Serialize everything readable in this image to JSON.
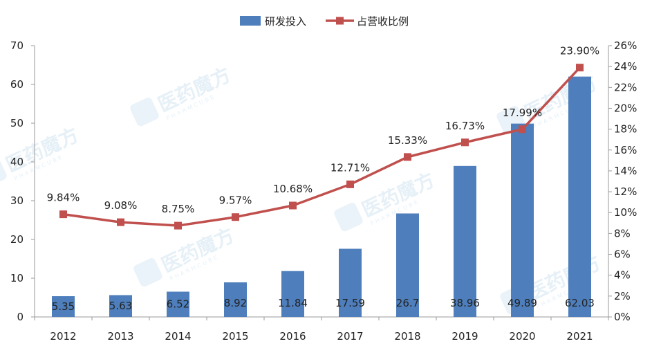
{
  "chart_data": {
    "type": "bar",
    "categories": [
      "2012",
      "2013",
      "2014",
      "2015",
      "2016",
      "2017",
      "2018",
      "2019",
      "2020",
      "2021"
    ],
    "series": [
      {
        "name": "研发投入",
        "type": "bar",
        "axis": "left",
        "values": [
          5.35,
          5.63,
          6.52,
          8.92,
          11.84,
          17.59,
          26.7,
          38.96,
          49.89,
          62.03
        ],
        "labels": [
          "5.35",
          "5.63",
          "6.52",
          "8.92",
          "11.84",
          "17.59",
          "26.7",
          "38.96",
          "49.89",
          "62.03"
        ]
      },
      {
        "name": "占营收比例",
        "type": "line",
        "axis": "right",
        "values": [
          9.84,
          9.08,
          8.75,
          9.57,
          10.68,
          12.71,
          15.33,
          16.73,
          17.99,
          23.9
        ],
        "labels": [
          "9.84%",
          "9.08%",
          "8.75%",
          "9.57%",
          "10.68%",
          "12.71%",
          "15.33%",
          "16.73%",
          "17.99%",
          "23.90%"
        ]
      }
    ],
    "y_left": {
      "ylim": [
        0,
        70
      ],
      "ticks": [
        "0",
        "10",
        "20",
        "30",
        "40",
        "50",
        "60",
        "70"
      ]
    },
    "y_right": {
      "ylim": [
        0,
        26
      ],
      "ticks": [
        "0%",
        "2%",
        "4%",
        "6%",
        "8%",
        "10%",
        "12%",
        "14%",
        "16%",
        "18%",
        "20%",
        "22%",
        "24%",
        "26%"
      ]
    },
    "legend": {
      "position": "top-center"
    },
    "grid": false,
    "colors": {
      "bar": "#4e7fbc",
      "line": "#c0504d",
      "axis": "#999999"
    }
  },
  "watermark": {
    "text": "医药魔方",
    "subtext": "PHARMCUBE"
  }
}
